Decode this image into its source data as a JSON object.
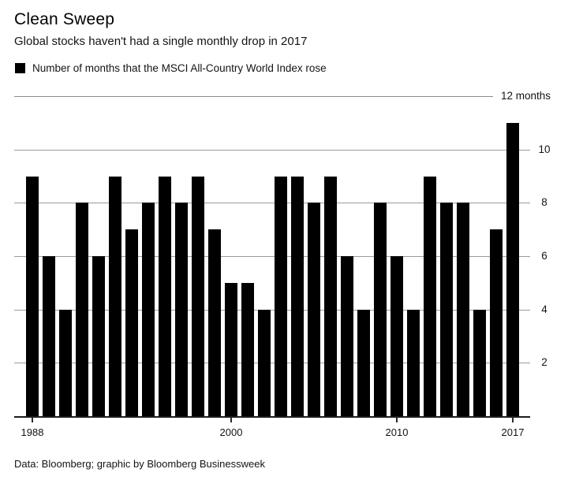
{
  "header": {
    "title": "Clean Sweep",
    "subtitle": "Global stocks haven't had a single monthly drop in 2017"
  },
  "legend": {
    "label": "Number of months that the MSCI All-Country World Index rose",
    "swatch_color": "#000000"
  },
  "chart_data": {
    "type": "bar",
    "title": "Clean Sweep",
    "series_label": "Number of months that the MSCI All-Country World Index rose",
    "categories": [
      "1988",
      "1989",
      "1990",
      "1991",
      "1992",
      "1993",
      "1994",
      "1995",
      "1996",
      "1997",
      "1998",
      "1999",
      "2000",
      "2001",
      "2002",
      "2003",
      "2004",
      "2005",
      "2006",
      "2007",
      "2008",
      "2009",
      "2010",
      "2011",
      "2012",
      "2013",
      "2014",
      "2015",
      "2016",
      "2017"
    ],
    "values": [
      9,
      6,
      4,
      8,
      6,
      9,
      7,
      8,
      9,
      8,
      9,
      7,
      5,
      5,
      4,
      9,
      9,
      8,
      9,
      6,
      4,
      8,
      6,
      4,
      9,
      8,
      8,
      4,
      7,
      11
    ],
    "ylim": [
      0,
      12
    ],
    "yticks": [
      10,
      8,
      6,
      4,
      2
    ],
    "ytick_side": "right",
    "top_axis_label": "12 months",
    "xticks": [
      "1988",
      "2000",
      "2010",
      "2017"
    ],
    "bar_color": "#000000",
    "grid": true,
    "legend_position": "top-left"
  },
  "footer": {
    "source": "Data: Bloomberg; graphic by Bloomberg Businessweek"
  }
}
